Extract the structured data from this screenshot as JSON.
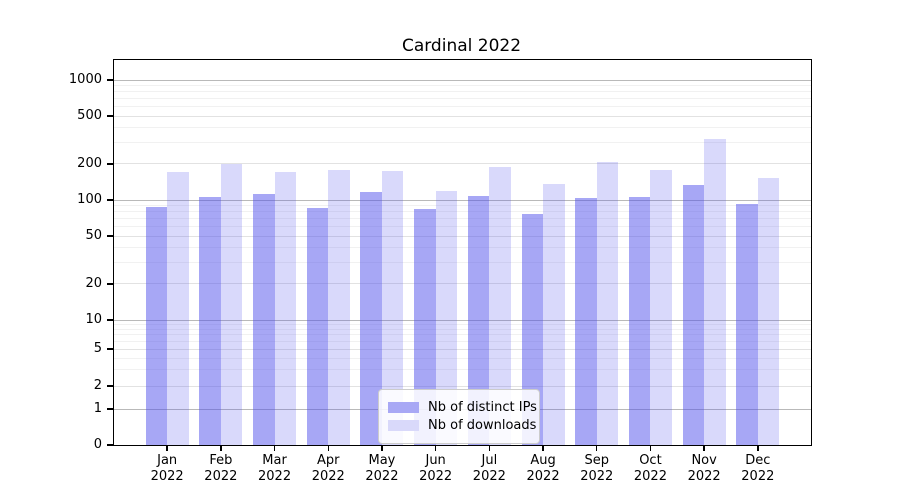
{
  "title": "Cardinal 2022",
  "chart_data": {
    "type": "bar",
    "title": "Cardinal 2022",
    "categories": [
      "Jan",
      "Feb",
      "Mar",
      "Apr",
      "May",
      "Jun",
      "Jul",
      "Aug",
      "Sep",
      "Oct",
      "Nov",
      "Dec"
    ],
    "x_year_label": "2022",
    "series": [
      {
        "name": "Nb of distinct IPs",
        "base_color": "#5050eb",
        "alpha": 0.5,
        "legend_color": "#a8a8f5",
        "values": [
          88,
          105,
          112,
          85,
          116,
          84,
          107,
          76,
          104,
          105,
          134,
          92
        ]
      },
      {
        "name": "Nb of downloads",
        "base_color": "#5050eb",
        "alpha": 0.22,
        "legend_color": "#d9d9fa",
        "values": [
          170,
          200,
          172,
          177,
          175,
          120,
          189,
          135,
          208,
          179,
          322,
          154
        ]
      }
    ],
    "y_ticks": [
      0,
      1,
      2,
      5,
      10,
      20,
      50,
      100,
      200,
      500,
      1000
    ],
    "y_scale": "symlog",
    "ylim": [
      0,
      1500
    ],
    "grid": true,
    "legend_position": "lower center",
    "grid_colors": {
      "major": "#b9b9b9",
      "labeled": "#e2e2e2",
      "minor": "#f1f1f1"
    }
  }
}
